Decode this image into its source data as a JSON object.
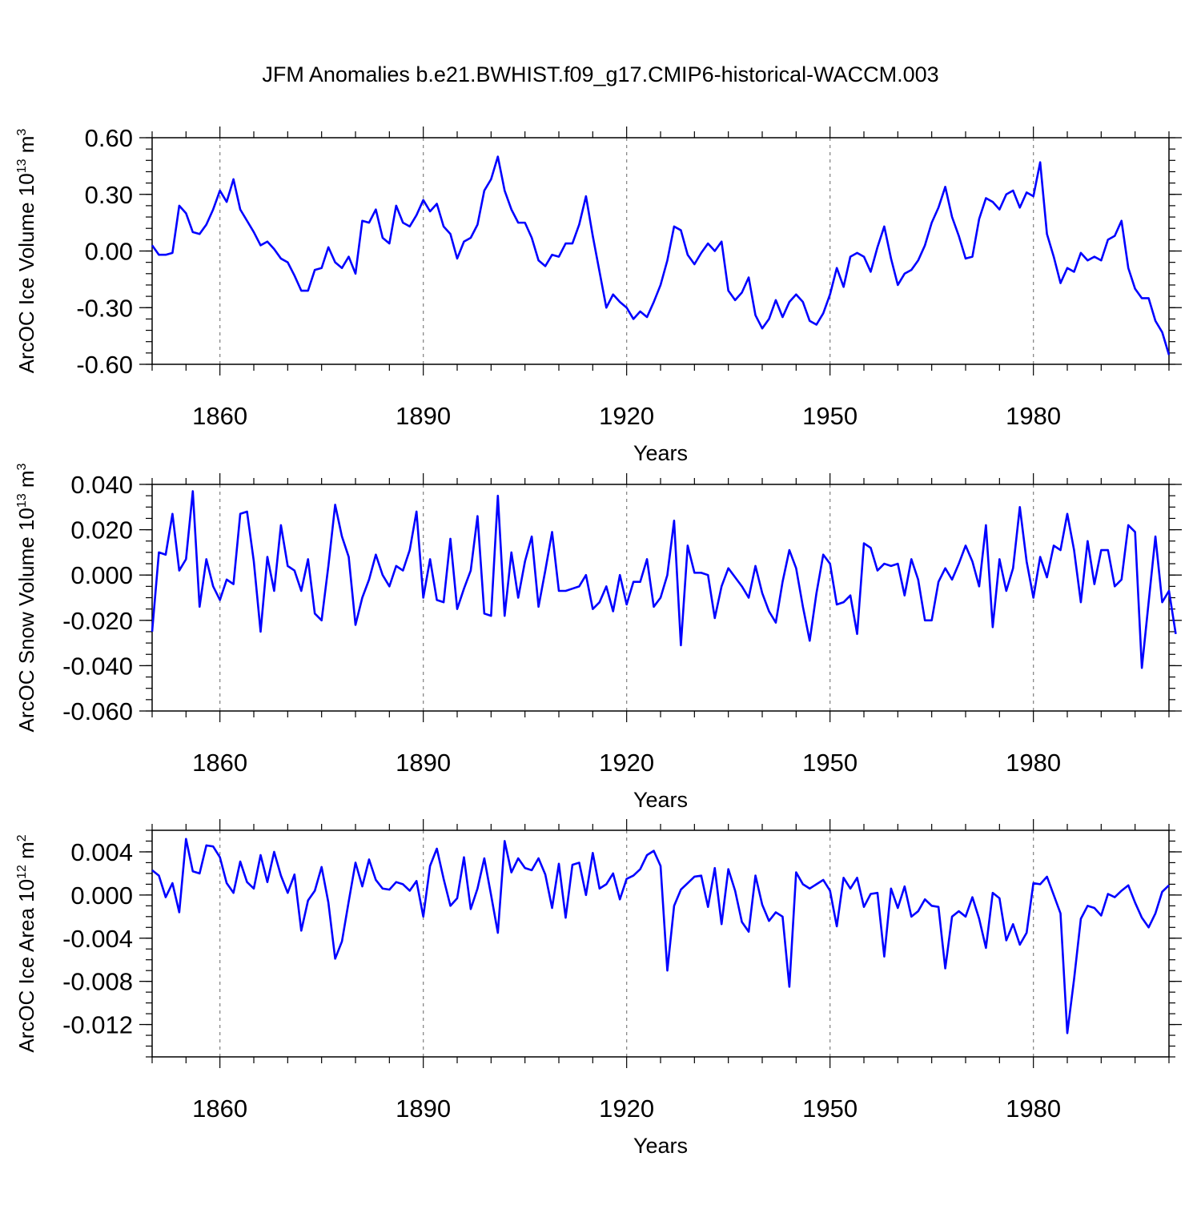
{
  "title": "JFM Anomalies b.e21.BWHIST.f09_g17.CMIP6-historical-WACCM.003",
  "colors": {
    "series": "#0000ff",
    "grid": "#888888",
    "axis": "#000000"
  },
  "chart_data": [
    {
      "type": "line",
      "ylabel": "ArcOC Ice Volume",
      "yunit": {
        "base": "10",
        "exp": "13",
        "unit": "m",
        "unit_exp": "3"
      },
      "xlabel": "Years",
      "xlim": [
        1850,
        2000
      ],
      "ylim": [
        -0.6,
        0.6
      ],
      "x_ticks": [
        "1860",
        "1890",
        "1920",
        "1950",
        "1980"
      ],
      "y_ticks": [
        {
          "value": 0.6,
          "label": "0.60"
        },
        {
          "value": 0.3,
          "label": "0.30"
        },
        {
          "value": 0.0,
          "label": "0.00"
        },
        {
          "value": -0.3,
          "label": "-0.30"
        },
        {
          "value": -0.6,
          "label": "-0.60"
        }
      ],
      "y_minor_step": 0.06,
      "x_start": 1850,
      "values": [
        0.03,
        -0.02,
        -0.02,
        -0.01,
        0.24,
        0.2,
        0.1,
        0.09,
        0.14,
        0.22,
        0.32,
        0.26,
        0.38,
        0.22,
        0.16,
        0.1,
        0.03,
        0.05,
        0.01,
        -0.04,
        -0.06,
        -0.13,
        -0.21,
        -0.21,
        -0.1,
        -0.09,
        0.02,
        -0.06,
        -0.09,
        -0.03,
        -0.12,
        0.16,
        0.15,
        0.22,
        0.07,
        0.04,
        0.24,
        0.15,
        0.13,
        0.19,
        0.27,
        0.21,
        0.25,
        0.13,
        0.09,
        -0.04,
        0.05,
        0.07,
        0.14,
        0.32,
        0.38,
        0.5,
        0.32,
        0.22,
        0.15,
        0.15,
        0.07,
        -0.05,
        -0.08,
        -0.02,
        -0.03,
        0.04,
        0.04,
        0.14,
        0.29,
        0.08,
        -0.11,
        -0.3,
        -0.23,
        -0.27,
        -0.3,
        -0.36,
        -0.32,
        -0.35,
        -0.27,
        -0.18,
        -0.05,
        0.13,
        0.11,
        -0.02,
        -0.07,
        -0.01,
        0.04,
        0.0,
        0.05,
        -0.21,
        -0.26,
        -0.22,
        -0.14,
        -0.34,
        -0.41,
        -0.36,
        -0.26,
        -0.35,
        -0.27,
        -0.23,
        -0.27,
        -0.37,
        -0.39,
        -0.33,
        -0.23,
        -0.09,
        -0.19,
        -0.03,
        -0.01,
        -0.03,
        -0.11,
        0.02,
        0.13,
        -0.04,
        -0.18,
        -0.12,
        -0.1,
        -0.05,
        0.03,
        0.15,
        0.23,
        0.34,
        0.18,
        0.08,
        -0.04,
        -0.03,
        0.17,
        0.28,
        0.26,
        0.22,
        0.3,
        0.32,
        0.23,
        0.31,
        0.29,
        0.47,
        0.09,
        -0.03,
        -0.17,
        -0.09,
        -0.11,
        -0.01,
        -0.05,
        -0.03,
        -0.05,
        0.06,
        0.08,
        0.16,
        -0.09,
        -0.2,
        -0.25,
        -0.25,
        -0.37,
        -0.43,
        -0.55
      ]
    },
    {
      "type": "line",
      "ylabel": "ArcOC Snow Volume",
      "yunit": {
        "base": "10",
        "exp": "13",
        "unit": "m",
        "unit_exp": "3"
      },
      "xlabel": "Years",
      "xlim": [
        1850,
        2000
      ],
      "ylim": [
        -0.06,
        0.04
      ],
      "x_ticks": [
        "1860",
        "1890",
        "1920",
        "1950",
        "1980"
      ],
      "y_ticks": [
        {
          "value": 0.04,
          "label": "0.040"
        },
        {
          "value": 0.02,
          "label": "0.020"
        },
        {
          "value": 0.0,
          "label": "0.000"
        },
        {
          "value": -0.02,
          "label": "-0.020"
        },
        {
          "value": -0.04,
          "label": "-0.040"
        },
        {
          "value": -0.06,
          "label": "-0.060"
        }
      ],
      "y_minor_step": 0.005,
      "x_start": 1850,
      "values": [
        -0.025,
        0.01,
        0.009,
        0.027,
        0.002,
        0.007,
        0.037,
        -0.014,
        0.007,
        -0.005,
        -0.011,
        -0.002,
        -0.004,
        0.027,
        0.028,
        0.006,
        -0.025,
        0.008,
        -0.007,
        0.022,
        0.004,
        0.002,
        -0.007,
        0.007,
        -0.017,
        -0.02,
        0.004,
        0.031,
        0.017,
        0.008,
        -0.022,
        -0.01,
        -0.002,
        0.009,
        0.0,
        -0.005,
        0.004,
        0.002,
        0.011,
        0.028,
        -0.01,
        0.007,
        -0.011,
        -0.012,
        0.016,
        -0.015,
        -0.006,
        0.002,
        0.026,
        -0.017,
        -0.018,
        0.035,
        -0.018,
        0.01,
        -0.01,
        0.006,
        0.017,
        -0.014,
        0.002,
        0.019,
        -0.007,
        -0.007,
        -0.006,
        -0.005,
        0.0,
        -0.015,
        -0.012,
        -0.005,
        -0.016,
        0.0,
        -0.013,
        -0.003,
        -0.003,
        0.007,
        -0.014,
        -0.01,
        0.0,
        0.024,
        -0.031,
        0.013,
        0.001,
        0.001,
        0.0,
        -0.019,
        -0.005,
        0.003,
        -0.001,
        -0.005,
        -0.01,
        0.004,
        -0.008,
        -0.016,
        -0.021,
        -0.003,
        0.011,
        0.003,
        -0.014,
        -0.029,
        -0.008,
        0.009,
        0.005,
        -0.013,
        -0.012,
        -0.009,
        -0.026,
        0.014,
        0.012,
        0.002,
        0.005,
        0.004,
        0.005,
        -0.009,
        0.007,
        -0.002,
        -0.02,
        -0.02,
        -0.003,
        0.003,
        -0.002,
        0.005,
        0.013,
        0.006,
        -0.005,
        0.022,
        -0.023,
        0.007,
        -0.007,
        0.003,
        0.03,
        0.006,
        -0.01,
        0.008,
        -0.001,
        0.013,
        0.011,
        0.027,
        0.011,
        -0.012,
        0.015,
        -0.004,
        0.011,
        0.011,
        -0.005,
        -0.002,
        0.022,
        0.019,
        -0.041,
        -0.012,
        0.017,
        -0.012,
        -0.007,
        -0.026
      ]
    },
    {
      "type": "line",
      "ylabel": "ArcOC Ice Area",
      "yunit": {
        "base": "10",
        "exp": "12",
        "unit": "m",
        "unit_exp": "2"
      },
      "xlabel": "Years",
      "xlim": [
        1850,
        2000
      ],
      "ylim": [
        -0.015,
        0.006
      ],
      "x_ticks": [
        "1860",
        "1890",
        "1920",
        "1950",
        "1980"
      ],
      "y_ticks": [
        {
          "value": 0.004,
          "label": "0.004"
        },
        {
          "value": 0.0,
          "label": "0.000"
        },
        {
          "value": -0.004,
          "label": "-0.004"
        },
        {
          "value": -0.008,
          "label": "-0.008"
        },
        {
          "value": -0.012,
          "label": "-0.012"
        }
      ],
      "y_minor_step": 0.001,
      "x_start": 1850,
      "values": [
        0.0023,
        0.0018,
        -0.0002,
        0.0011,
        -0.0016,
        0.0052,
        0.0022,
        0.002,
        0.0046,
        0.0045,
        0.0035,
        0.0011,
        0.0002,
        0.0031,
        0.0012,
        0.0006,
        0.0037,
        0.0012,
        0.004,
        0.0018,
        0.0002,
        0.0019,
        -0.0033,
        -0.0005,
        0.0004,
        0.0026,
        -0.0007,
        -0.0059,
        -0.0043,
        -0.0006,
        0.003,
        0.0008,
        0.0033,
        0.0014,
        0.0006,
        0.0005,
        0.0012,
        0.001,
        0.0004,
        0.0013,
        -0.002,
        0.0027,
        0.0043,
        0.0015,
        -0.001,
        -0.0003,
        0.0035,
        -0.0013,
        0.0006,
        0.0034,
        0.0,
        -0.0035,
        0.005,
        0.0021,
        0.0034,
        0.0025,
        0.0023,
        0.0034,
        0.0019,
        -0.0012,
        0.0029,
        -0.0021,
        0.0028,
        0.003,
        0.0,
        0.0039,
        0.0006,
        0.001,
        0.002,
        -0.0004,
        0.0015,
        0.0018,
        0.0024,
        0.0037,
        0.0041,
        0.0027,
        -0.007,
        -0.001,
        0.0005,
        0.0011,
        0.0017,
        0.0018,
        -0.0011,
        0.0025,
        -0.0027,
        0.0024,
        0.0004,
        -0.0025,
        -0.0034,
        0.0018,
        -0.0009,
        -0.0024,
        -0.0016,
        -0.002,
        -0.0085,
        0.0021,
        0.001,
        0.0006,
        0.001,
        0.0014,
        0.0004,
        -0.0029,
        0.0016,
        0.0006,
        0.0016,
        -0.0011,
        0.0001,
        0.0002,
        -0.0057,
        0.0006,
        -0.0012,
        0.0008,
        -0.002,
        -0.0015,
        -0.0004,
        -0.001,
        -0.0011,
        -0.0068,
        -0.002,
        -0.0015,
        -0.002,
        -0.0002,
        -0.0022,
        -0.0049,
        0.0002,
        -0.0003,
        -0.0042,
        -0.0027,
        -0.0046,
        -0.0035,
        0.0011,
        0.001,
        0.0017,
        0.0,
        -0.0017,
        -0.0128,
        -0.0078,
        -0.0022,
        -0.001,
        -0.0012,
        -0.0019,
        0.0001,
        -0.0002,
        0.0004,
        0.0009,
        -0.0007,
        -0.0021,
        -0.003,
        -0.0017,
        0.0003,
        0.0009
      ]
    }
  ]
}
